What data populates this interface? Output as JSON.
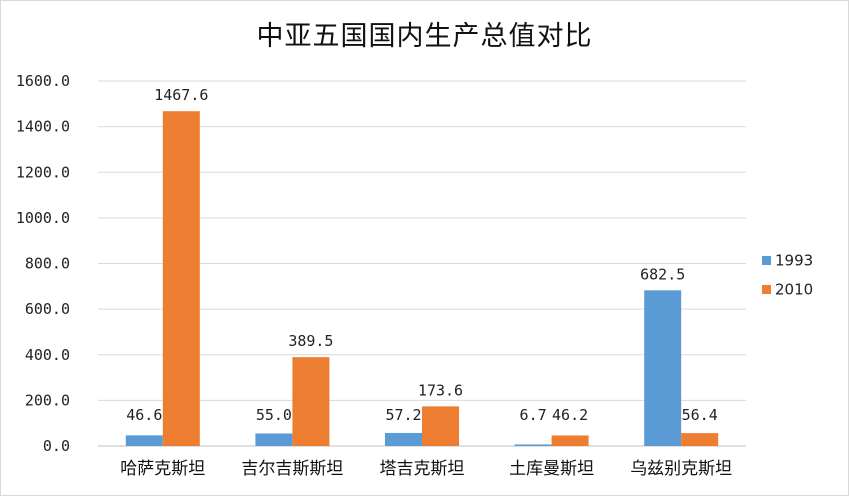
{
  "chart_data": {
    "type": "bar",
    "title": "中亚五国国内生产总值对比",
    "categories": [
      "哈萨克斯坦",
      "吉尔吉斯斯坦",
      "塔吉克斯坦",
      "土库曼斯坦",
      "乌兹别克斯坦"
    ],
    "series": [
      {
        "name": "1993",
        "values": [
          46.6,
          55.0,
          57.2,
          6.7,
          682.5
        ],
        "labels": [
          "46.6",
          "55.0",
          "57.2",
          "6.7",
          "682.5"
        ],
        "color": "#5b9bd5"
      },
      {
        "name": "2010",
        "values": [
          1467.6,
          389.5,
          173.6,
          46.2,
          56.4
        ],
        "labels": [
          "1467.6",
          "389.5",
          "173.6",
          "46.2",
          "56.4"
        ],
        "color": "#ed7d31"
      }
    ],
    "ylim": [
      0,
      1600
    ],
    "yticks": [
      "0.0",
      "200.0",
      "400.0",
      "600.0",
      "800.0",
      "1000.0",
      "1200.0",
      "1400.0",
      "1600.0"
    ],
    "xlabel": "",
    "ylabel": "",
    "grid": true,
    "legend_position": "right"
  }
}
